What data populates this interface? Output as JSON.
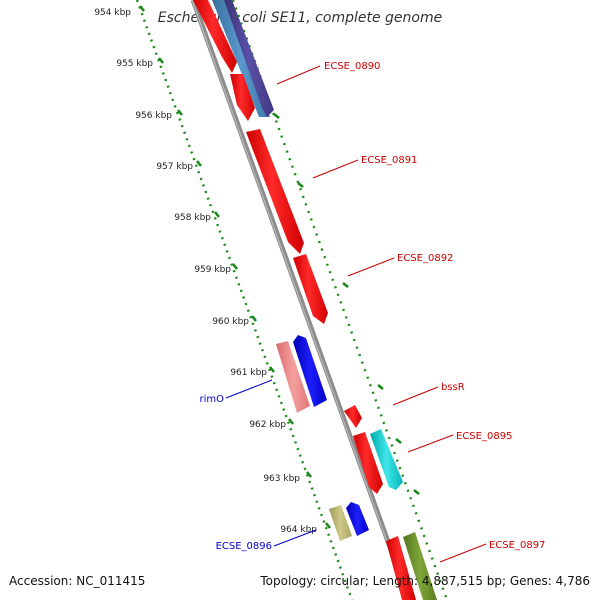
{
  "map": {
    "title": "Escherichia coli SE11, complete genome",
    "accession": "Accession: NC_011415",
    "stats": "Topology: circular; Length: 4,887,515 bp; Genes: 4,786",
    "colors": {
      "backbone": "#8c8c8c",
      "scale_dots": "#1a8a1a",
      "label_forward": "#cc0000",
      "label_reverse": "#0000cc"
    },
    "ticks": [
      "954 kbp",
      "955 kbp",
      "956 kbp",
      "957 kbp",
      "958 kbp",
      "959 kbp",
      "960 kbp",
      "961 kbp",
      "962 kbp",
      "963 kbp",
      "964 kbp"
    ],
    "gene_labels": [
      {
        "text": "ECSE_0890",
        "strand": "forward"
      },
      {
        "text": "ECSE_0891",
        "strand": "forward"
      },
      {
        "text": "ECSE_0892",
        "strand": "forward"
      },
      {
        "text": "bssR",
        "strand": "forward"
      },
      {
        "text": "ECSE_0895",
        "strand": "forward"
      },
      {
        "text": "ECSE_0897",
        "strand": "forward"
      },
      {
        "text": "rimO",
        "strand": "reverse"
      },
      {
        "text": "ECSE_0896",
        "strand": "reverse"
      }
    ],
    "features": [
      {
        "name": "gene-ECSE_0890-part1",
        "color": "#ff0000"
      },
      {
        "name": "gene-ECSE_0890-part2",
        "color": "#ff0000"
      },
      {
        "name": "cds-blue-0890",
        "color": "#4682b4"
      },
      {
        "name": "cds-purple-0890",
        "color": "#483d8b"
      },
      {
        "name": "gene-ECSE_0891",
        "color": "#ff0000"
      },
      {
        "name": "gene-ECSE_0892",
        "color": "#ff0000"
      },
      {
        "name": "gene-rimO",
        "color": "#f08080"
      },
      {
        "name": "cds-rimO",
        "color": "#0000ff"
      },
      {
        "name": "gene-bssR",
        "color": "#ff0000"
      },
      {
        "name": "gene-ECSE_0895",
        "color": "#ff0000"
      },
      {
        "name": "cds-ECSE_0895",
        "color": "#00ced1"
      },
      {
        "name": "gene-ECSE_0896",
        "color": "#bdb76b"
      },
      {
        "name": "cds-ECSE_0896",
        "color": "#0000ff"
      },
      {
        "name": "gene-ECSE_0897",
        "color": "#ff0000"
      },
      {
        "name": "cds-ECSE_0897",
        "color": "#6b8e23"
      }
    ]
  }
}
